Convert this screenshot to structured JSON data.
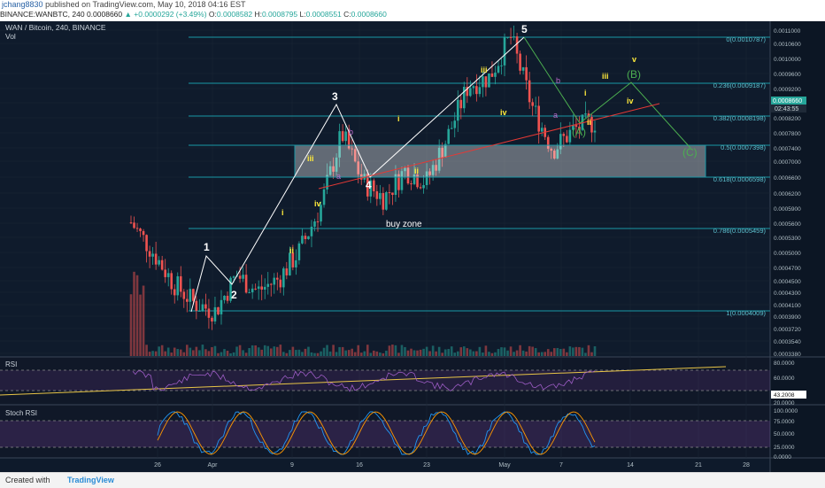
{
  "header": {
    "user": "jchang8830",
    "published": "published on TradingView.com, May 10, 2018 04:16 EST",
    "ticker_line": "BINANCE:WANBTC, 240",
    "last": "0.0008660",
    "change": "▲ +0.0000292 (+3.49%)",
    "o_label": "O:",
    "o": "0.0008582",
    "h_label": "H:",
    "h": "0.0008795",
    "l_label": "L:",
    "l": "0.0008551",
    "c_label": "C:",
    "c": "0.0008660"
  },
  "chart_title": "WAN / Bitcoin, 240, BINANCE",
  "vol_label": "Vol",
  "price_axis": [
    "0.0011000",
    "0.0010600",
    "0.0010000",
    "0.0009600",
    "0.0009200",
    "0.0008600",
    "0.0008200",
    "0.0007800",
    "0.0007400",
    "0.0007000",
    "0.0006600",
    "0.0006200",
    "0.0005900",
    "0.0005600",
    "0.0005300",
    "0.0005000",
    "0.0004700",
    "0.0004500",
    "0.0004300",
    "0.0004100",
    "0.0003900",
    "0.0003720",
    "0.0003540",
    "0.0003380"
  ],
  "price_tag": "0.0008660",
  "time_tag": "02:43:55",
  "x_ticks": [
    "26",
    "Apr",
    "9",
    "16",
    "23",
    "May",
    "7",
    "14",
    "21",
    "28"
  ],
  "fib_levels": [
    {
      "label": "0(0.0010787)"
    },
    {
      "label": "0.236(0.0009187)"
    },
    {
      "label": "0.382(0.0008198)"
    },
    {
      "label": "0.5(0.0007398)"
    },
    {
      "label": "0.618(0.0006598)"
    },
    {
      "label": "0.786(0.0005459)"
    },
    {
      "label": "1(0.0004009)"
    }
  ],
  "buy_zone": "buy zone",
  "wave_labels": {
    "w1": "1",
    "w2": "2",
    "w3": "3",
    "w4": "4",
    "w5": "5",
    "i": "i",
    "ii": "ii",
    "iii": "iii",
    "iv": "iv",
    "a": "a",
    "b": "b",
    "A": "(A)",
    "B": "(B)",
    "C": "(C)",
    "v": "v"
  },
  "rsi": {
    "title": "RSI",
    "ticks": [
      "80.0000",
      "60.0000",
      "43.2008",
      "20.0000"
    ]
  },
  "stoch": {
    "title": "Stoch RSI",
    "ticks": [
      "100.0000",
      "75.0000",
      "50.0000",
      "25.0000",
      "0.0000"
    ]
  },
  "footer": {
    "created": "Created with",
    "brand": "TradingView"
  },
  "colors": {
    "bull": "#26a69a",
    "bear": "#ef5350",
    "fib": "#1a98a6",
    "wave": "#ffffff",
    "green": "#4caf50",
    "yellow": "#cddc39",
    "rsi": "#8e44ad",
    "stoch_k": "#2196f3",
    "stoch_d": "#ff9800"
  },
  "chart_data": {
    "type": "line",
    "series": [
      {
        "values": [
          0.00062,
          0.00055,
          0.00047,
          0.00042,
          0.0004,
          0.00049,
          0.00045,
          0.00048,
          0.00055,
          0.00066,
          0.00084,
          0.00072,
          0.00068,
          0.00075,
          0.00072,
          0.00083,
          0.00096,
          0.00098,
          0.00108,
          0.00091,
          0.0008,
          0.00085,
          0.00087
        ]
      }
    ]
  }
}
